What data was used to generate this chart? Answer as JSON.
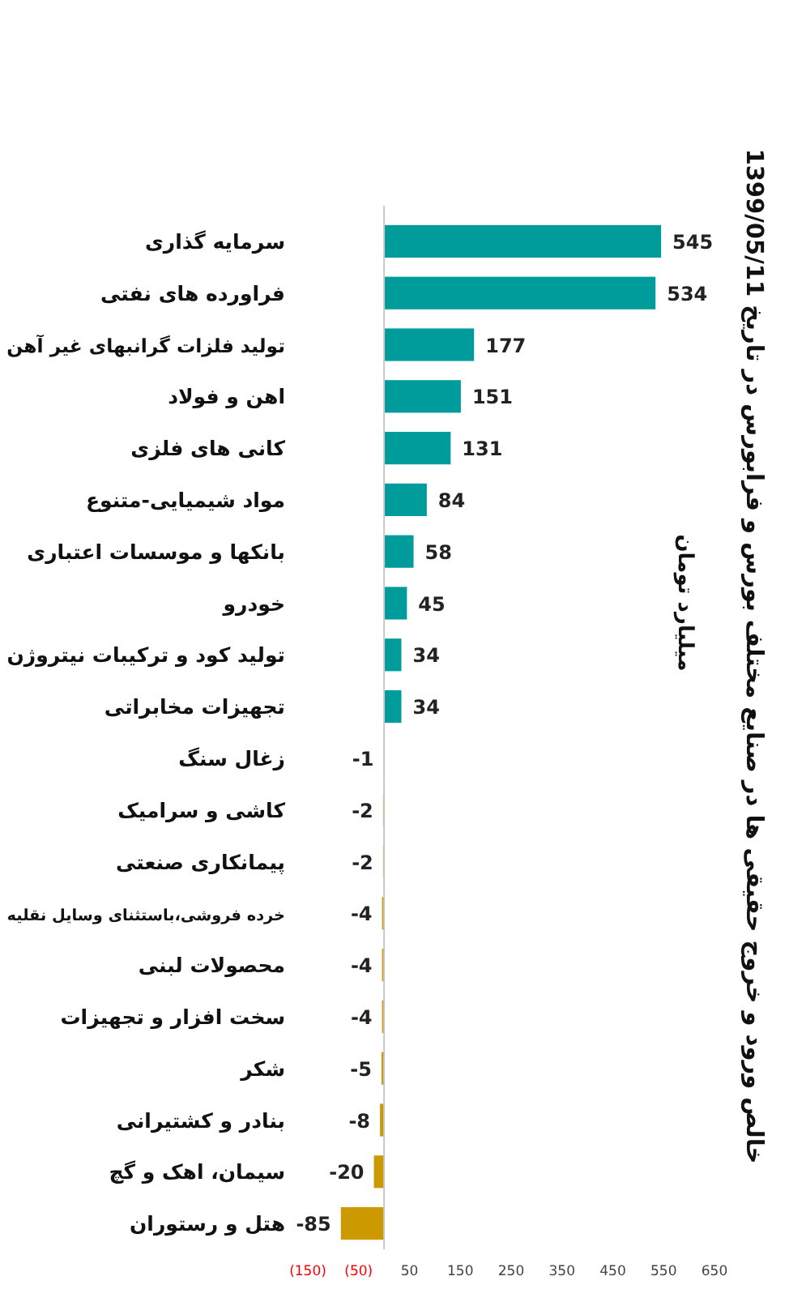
{
  "chart_data": {
    "type": "bar",
    "orientation": "horizontal",
    "title": "خالص ورود و خروج حقیقی ها در صنایع مختلف بورس و فرابورس در تاریخ 1399/05/11",
    "y2label": "میلیارد تومان",
    "categories": [
      "سرمایه گذاری",
      "فراورده های نفتی",
      "تولید فلزات گرانبهای غیر آهن",
      "اهن و فولاد",
      "کانی های فلزی",
      "مواد شیمیایی-متنوع",
      "بانکها و موسسات اعتباری",
      "خودرو",
      "تولید کود و ترکیبات نیتروژن",
      "تجهیزات مخابراتی",
      "زغال سنگ",
      "کاشی و سرامیک",
      "پیمانکاری صنعتی",
      "خرده فروشی،باستثنای وسایل نقلیه",
      "محصولات لبنی",
      "سخت افزار و تجهیزات",
      "شکر",
      "بنادر و کشتیرانی",
      "سیمان، اهک و گچ",
      "هتل و رستوران"
    ],
    "values": [
      545,
      534,
      177,
      151,
      131,
      84,
      58,
      45,
      34,
      34,
      -1,
      -2,
      -2,
      -4,
      -4,
      -4,
      -5,
      -8,
      -20,
      -85
    ],
    "colors": [
      "#009b9b",
      "#009b9b",
      "#009b9b",
      "#009b9b",
      "#009b9b",
      "#009b9b",
      "#009b9b",
      "#009b9b",
      "#009b9b",
      "#009b9b",
      "#cc9900",
      "#cc9900",
      "#cc9900",
      "#cc9900",
      "#cc9900",
      "#cc9900",
      "#cc9900",
      "#cc9900",
      "#cc9900",
      "#cc9900"
    ],
    "xlim": [
      -150,
      650
    ],
    "xticks": [
      {
        "value": -150,
        "label": "(150)"
      },
      {
        "value": -50,
        "label": "(50)"
      },
      50,
      150,
      250,
      350,
      450,
      550,
      650
    ],
    "data_labels": true
  }
}
